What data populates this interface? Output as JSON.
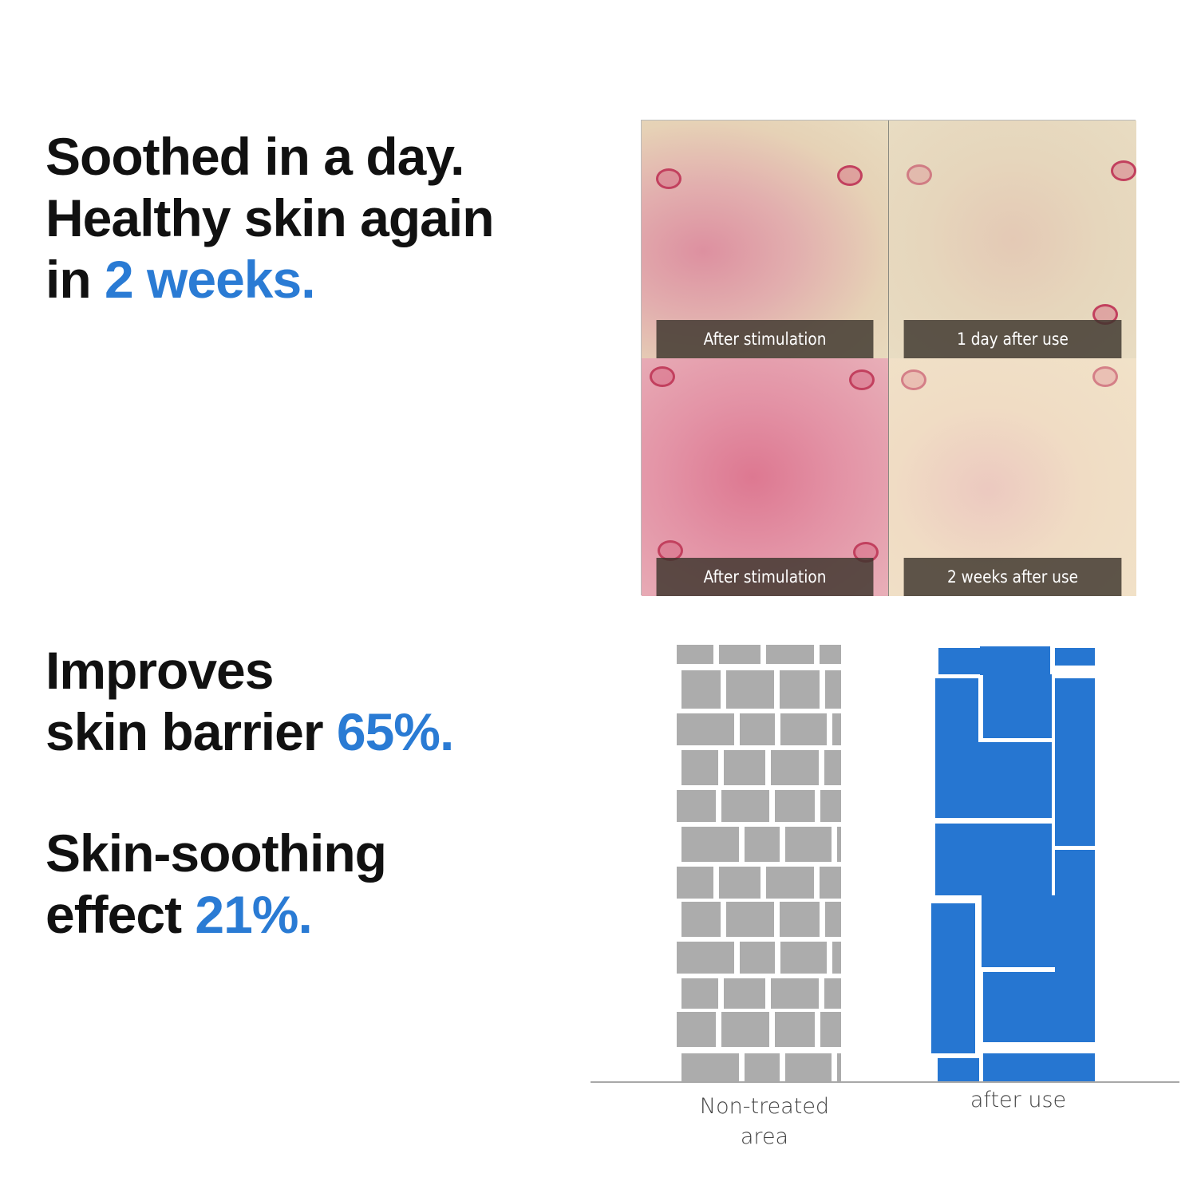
{
  "section1": {
    "line1": "Soothed in a day.",
    "line2": "Healthy skin again",
    "line3_prefix": "in ",
    "line3_accent": "2 weeks."
  },
  "section2": {
    "line1": "Improves",
    "line2_prefix": "skin barrier ",
    "line2_accent": "65%."
  },
  "section3": {
    "line1": "Skin-soothing",
    "line2_prefix": "effect ",
    "line2_accent": "21%."
  },
  "photos": [
    {
      "label": "After stimulation"
    },
    {
      "label": "1 day after use"
    },
    {
      "label": "After stimulation"
    },
    {
      "label": "2 weeks after use"
    }
  ],
  "barrier_diagram": {
    "columns": [
      {
        "label_line1": "Non-treated",
        "label_line2": "area",
        "color": "#acacac"
      },
      {
        "label": "after use",
        "color": "#2676d1"
      }
    ]
  },
  "colors": {
    "accent": "#2a7bd4",
    "text": "#111111"
  }
}
